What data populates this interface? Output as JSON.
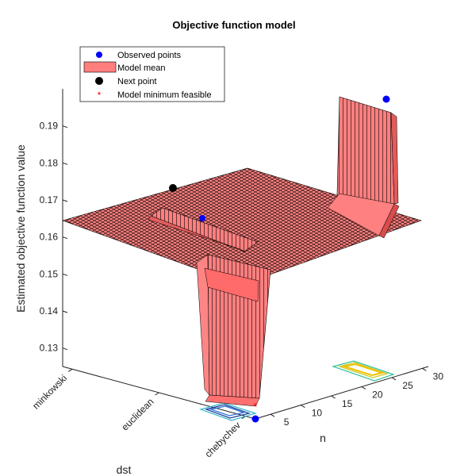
{
  "chart_data": {
    "type": "surface3d",
    "title": "Objective function model",
    "zlabel": "Estimated objective function value",
    "xlabel": "n",
    "ylabel": "dst",
    "x_ticks": [
      "5",
      "10",
      "15",
      "20",
      "25",
      "30"
    ],
    "y_ticks": [
      "minkowski",
      "euclidean",
      "chebychev"
    ],
    "z_ticks": [
      "0.13",
      "0.14",
      "0.15",
      "0.16",
      "0.17",
      "0.18",
      "0.19"
    ],
    "zlim": [
      0.125,
      0.2
    ],
    "legend": {
      "location": "top-left",
      "entries": [
        {
          "label": "Observed points",
          "kind": "dot",
          "color": "#0000ff"
        },
        {
          "label": "Model mean",
          "kind": "patch",
          "color": "#ff7f7f"
        },
        {
          "label": "Next point",
          "kind": "dot",
          "color": "#000000"
        },
        {
          "label": "Model minimum feasible",
          "kind": "star",
          "color": "#ff0000"
        }
      ]
    },
    "plateau_value": 0.164,
    "features": [
      {
        "name": "low trough",
        "category": "chebychev",
        "n_range": [
          5,
          10
        ],
        "value": 0.127
      },
      {
        "name": "ridge",
        "category": "euclidean",
        "n_range": [
          5,
          12
        ],
        "value": 0.166
      },
      {
        "name": "high ridge",
        "category": "minkowski",
        "n_range": [
          27,
          30
        ],
        "value": 0.193
      }
    ],
    "points": [
      {
        "series": "Observed points",
        "category": "euclidean",
        "value": 0.165
      },
      {
        "series": "Observed points",
        "category": "minkowski",
        "n": 30,
        "value": 0.196
      },
      {
        "series": "Observed points",
        "category": "chebychev",
        "n": 5,
        "value": 0.125
      },
      {
        "series": "Next point",
        "category": "minkowski",
        "value": 0.173
      },
      {
        "series": "Model minimum feasible",
        "category": "chebychev",
        "n": 5,
        "value": 0.126
      }
    ],
    "colors": {
      "surface": "#ff7f7f",
      "edge": "#000000",
      "observed": "#0000ff",
      "next": "#000000",
      "minimum": "#ff0000"
    }
  }
}
